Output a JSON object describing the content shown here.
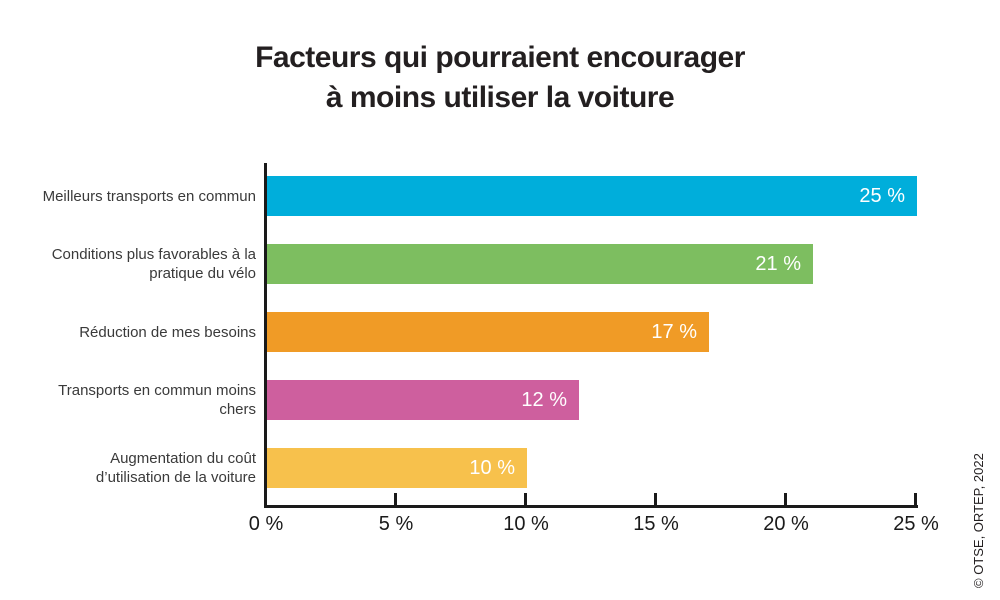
{
  "title": {
    "line1": "Facteurs qui pourraient encourager",
    "line2": "à moins utiliser la voiture"
  },
  "credit": "© OTSE, ORTEP, 2022",
  "chart_data": {
    "type": "bar",
    "orientation": "horizontal",
    "title": "Facteurs qui pourraient encourager à moins utiliser la voiture",
    "categories": [
      "Meilleurs transports en commun",
      "Conditions plus favorables à la\npratique du vélo",
      "Réduction de mes besoins",
      "Transports en commun moins\nchers",
      "Augmentation du coût\nd’utilisation de la voiture"
    ],
    "values": [
      25,
      21,
      17,
      12,
      10
    ],
    "value_labels": [
      "25 %",
      "21 %",
      "17 %",
      "12 %",
      "10 %"
    ],
    "bar_colors": [
      "#00aedb",
      "#7dbe60",
      "#f09b26",
      "#ce5f9e",
      "#f7c14c"
    ],
    "value_label_color": "#ffffff",
    "x_ticks": [
      0,
      5,
      10,
      15,
      20,
      25
    ],
    "x_tick_labels": [
      "0 %",
      "5 %",
      "10 %",
      "15 %",
      "20 %",
      "25 %"
    ],
    "xlim": [
      0,
      25
    ],
    "xlabel": "",
    "ylabel": "",
    "grid": false,
    "legend": "none",
    "axis_color": "#1a1a1a"
  }
}
